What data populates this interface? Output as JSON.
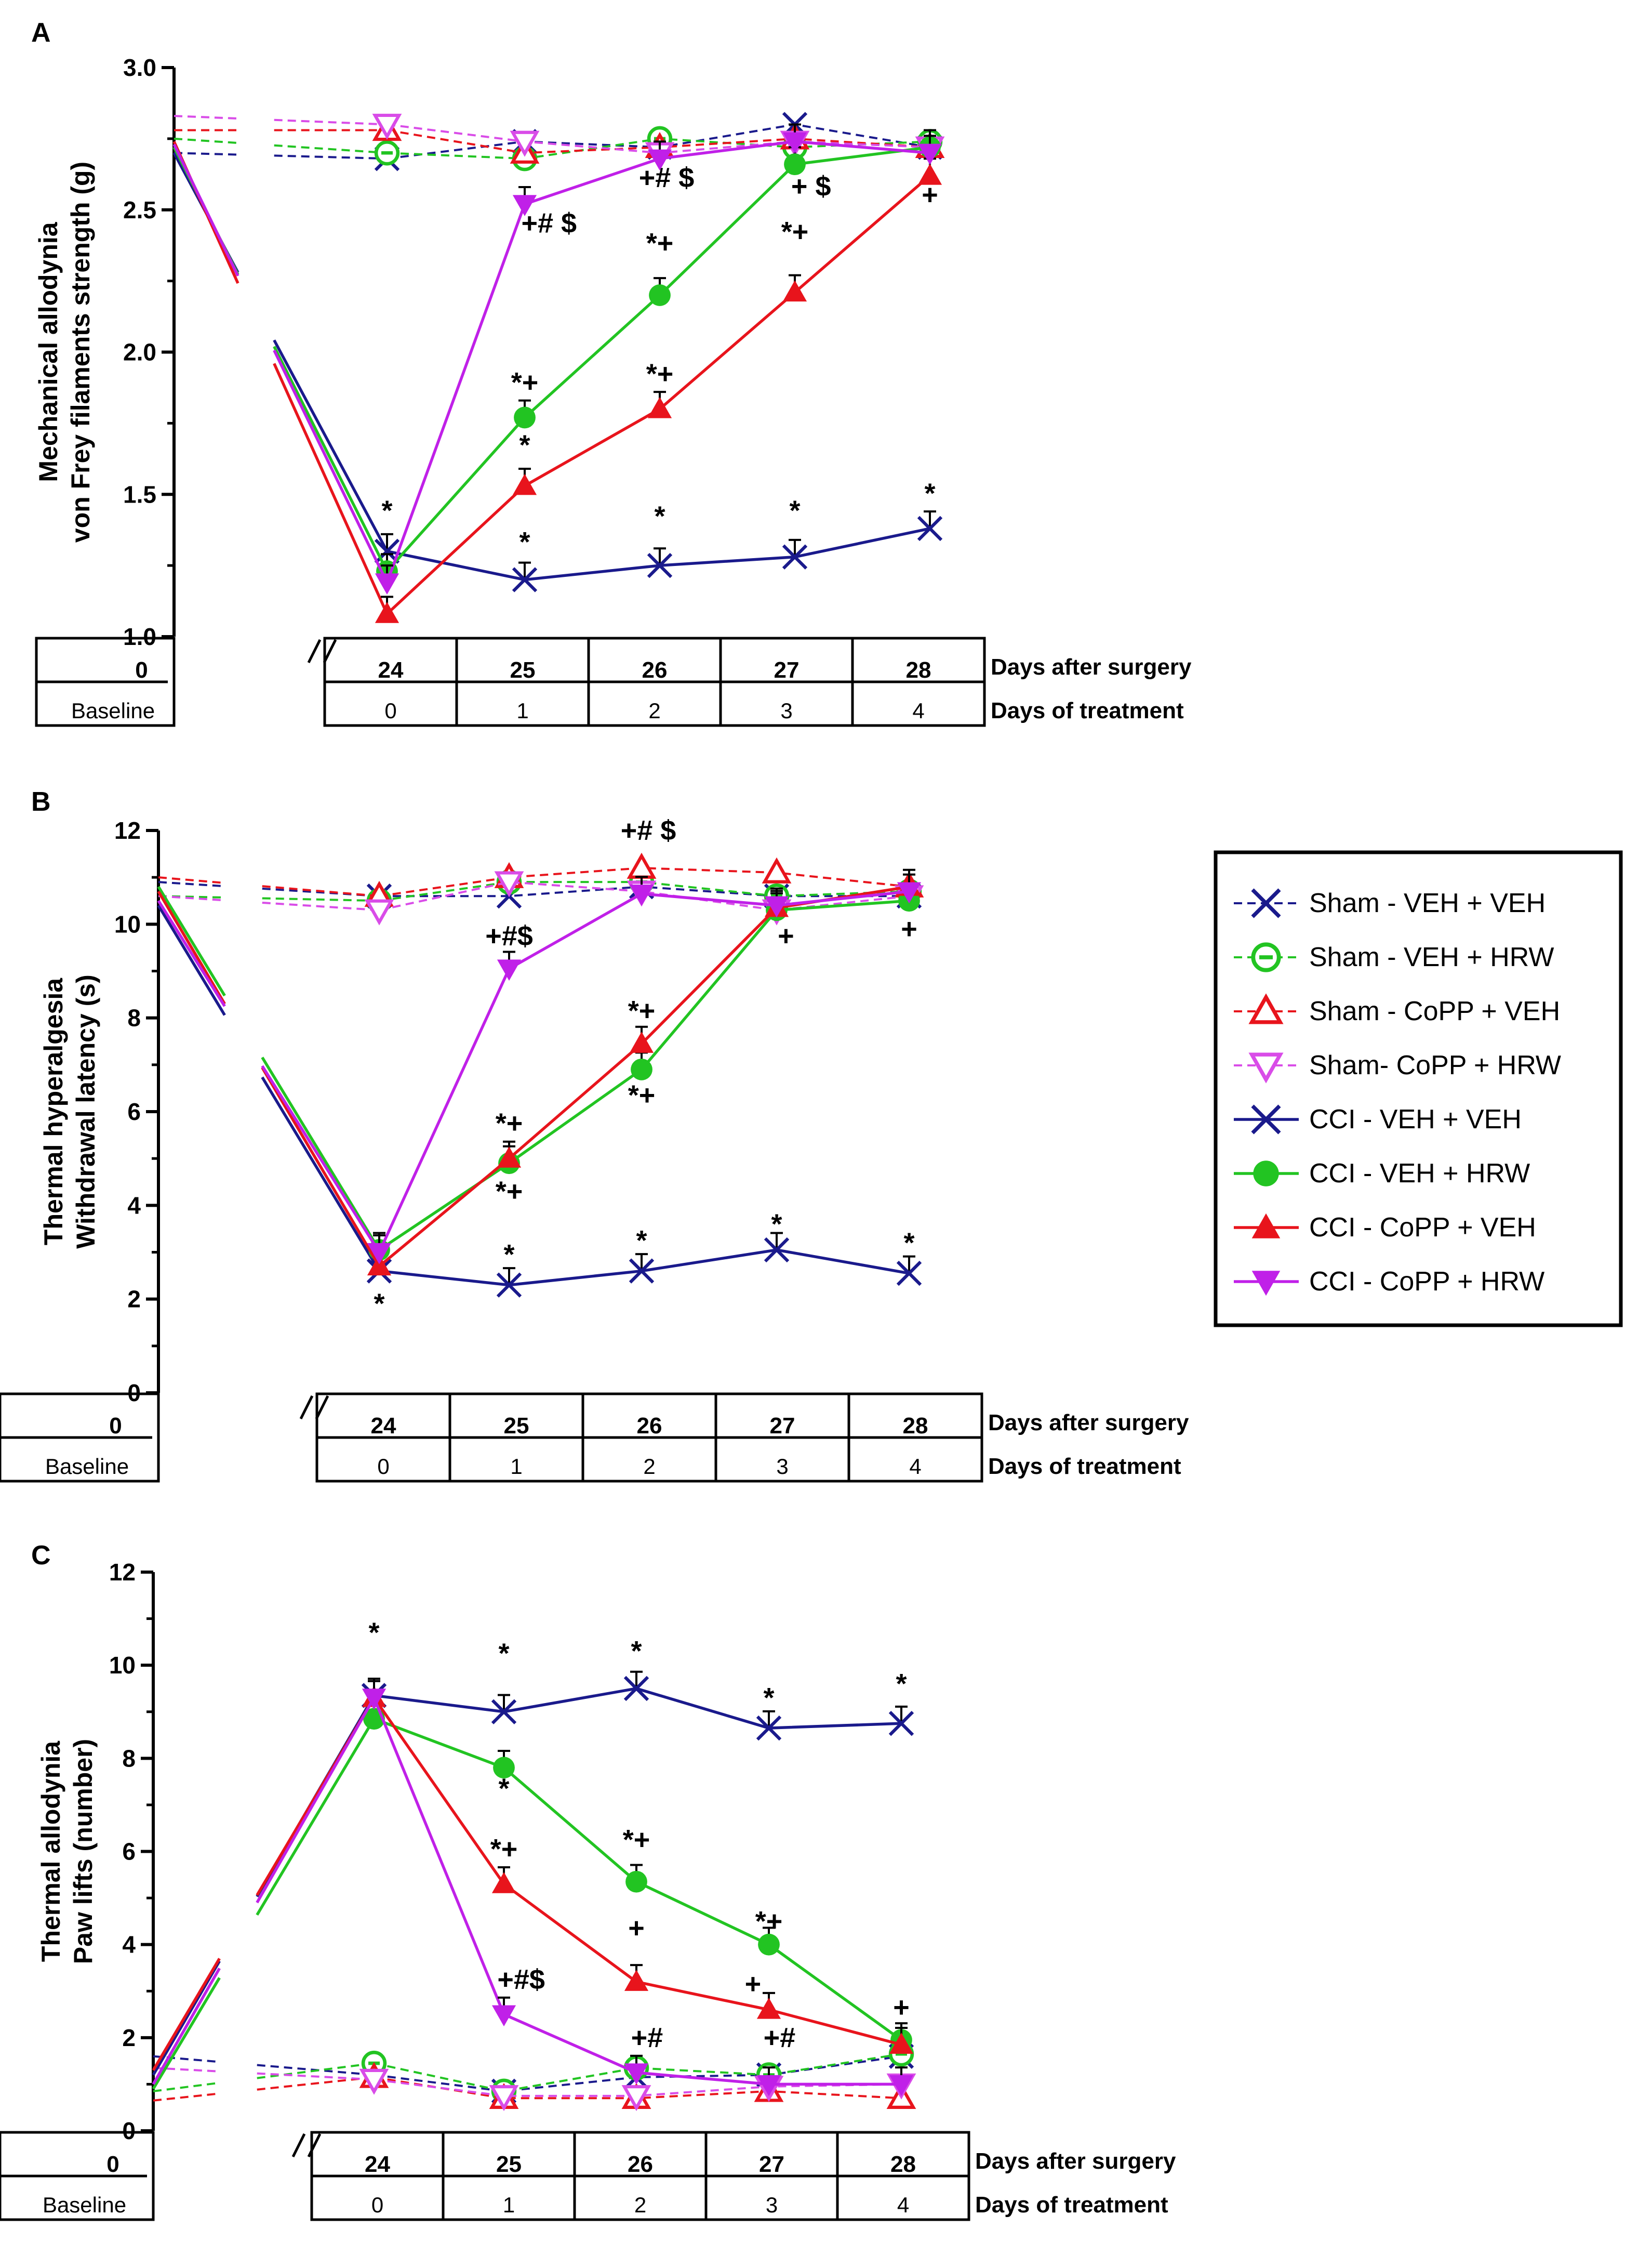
{
  "colors": {
    "sham_veh_veh": "#1a1a8c",
    "sham_veh_hrw": "#22c422",
    "sham_copp_veh": "#e8141c",
    "sham_copp_hrw": "#d94ce8",
    "cci_veh_veh": "#1a1a8c",
    "cci_veh_hrw": "#22c422",
    "cci_copp_veh": "#e8141c",
    "cci_copp_hrw": "#c020e8",
    "black": "#000000"
  },
  "legend": {
    "entries": [
      {
        "label": "Sham - VEH + VEH",
        "series": "sham_veh_veh",
        "marker": "x",
        "dash": true
      },
      {
        "label": "Sham - VEH + HRW",
        "series": "sham_veh_hrw",
        "marker": "circle-open",
        "dash": true
      },
      {
        "label": "Sham - CoPP + VEH",
        "series": "sham_copp_veh",
        "marker": "tri-up-open",
        "dash": true
      },
      {
        "label": "Sham- CoPP + HRW",
        "series": "sham_copp_hrw",
        "marker": "tri-down-open",
        "dash": true
      },
      {
        "label": "CCI - VEH + VEH",
        "series": "cci_veh_veh",
        "marker": "x",
        "dash": false
      },
      {
        "label": "CCI - VEH + HRW",
        "series": "cci_veh_hrw",
        "marker": "circle",
        "dash": false
      },
      {
        "label": "CCI - CoPP + VEH",
        "series": "cci_copp_veh",
        "marker": "tri-up",
        "dash": false
      },
      {
        "label": "CCI - CoPP + HRW",
        "series": "cci_copp_hrw",
        "marker": "tri-down",
        "dash": false
      }
    ]
  },
  "table": {
    "day0": "0",
    "baseline": "Baseline",
    "days_after": [
      "24",
      "25",
      "26",
      "27",
      "28"
    ],
    "days_treat": [
      "0",
      "1",
      "2",
      "3",
      "4"
    ],
    "row1_label": "Days after surgery",
    "row2_label": "Days of treatment"
  },
  "chart_data": [
    {
      "panel": "A",
      "type": "line",
      "ylabel": [
        "Mechanical allodynia",
        "von Frey filaments strength (g)"
      ],
      "ylim": [
        1.0,
        3.0
      ],
      "yticks": [
        "1.0",
        "1.5",
        "2.0",
        "2.5",
        "3.0"
      ],
      "x": [
        "0",
        "24",
        "25",
        "26",
        "27",
        "28"
      ],
      "series": [
        {
          "key": "sham_veh_veh",
          "values": [
            2.7,
            2.68,
            2.74,
            2.72,
            2.8,
            2.72
          ]
        },
        {
          "key": "sham_veh_hrw",
          "values": [
            2.75,
            2.7,
            2.68,
            2.75,
            2.72,
            2.74
          ]
        },
        {
          "key": "sham_copp_veh",
          "values": [
            2.78,
            2.78,
            2.7,
            2.72,
            2.75,
            2.72
          ]
        },
        {
          "key": "sham_copp_hrw",
          "values": [
            2.83,
            2.8,
            2.74,
            2.7,
            2.74,
            2.72
          ]
        },
        {
          "key": "cci_veh_veh",
          "values": [
            2.7,
            1.3,
            1.2,
            1.25,
            1.28,
            1.38
          ]
        },
        {
          "key": "cci_veh_hrw",
          "values": [
            2.72,
            1.23,
            1.77,
            2.2,
            2.66,
            2.72
          ]
        },
        {
          "key": "cci_copp_veh",
          "values": [
            2.74,
            1.08,
            1.53,
            1.8,
            2.21,
            2.62
          ]
        },
        {
          "key": "cci_copp_hrw",
          "values": [
            2.73,
            1.19,
            2.52,
            2.68,
            2.74,
            2.7
          ]
        }
      ],
      "annotations": [
        {
          "text": "*",
          "x": 1,
          "y": 1.41
        },
        {
          "text": "*",
          "x": 2,
          "y": 1.3
        },
        {
          "text": "*",
          "x": 3,
          "y": 1.39
        },
        {
          "text": "*",
          "x": 4,
          "y": 1.41
        },
        {
          "text": "*",
          "x": 5,
          "y": 1.47
        },
        {
          "text": "*",
          "x": 2,
          "y": 1.64
        },
        {
          "text": "*+",
          "x": 2,
          "y": 1.86
        },
        {
          "text": "*+",
          "x": 3,
          "y": 1.89
        },
        {
          "text": "*+",
          "x": 3,
          "y": 2.35
        },
        {
          "text": "*+",
          "x": 4,
          "y": 2.39
        },
        {
          "text": "+# $",
          "x": 2.18,
          "y": 2.42
        },
        {
          "text": "+# $",
          "x": 3.05,
          "y": 2.58
        },
        {
          "text": "+ $",
          "x": 4.12,
          "y": 2.55
        },
        {
          "text": "+",
          "x": 5,
          "y": 2.52
        }
      ]
    },
    {
      "panel": "B",
      "type": "line",
      "ylabel": [
        "Thermal hyperalgesia",
        "Withdrawal latency (s)"
      ],
      "ylim": [
        0,
        12
      ],
      "yticks": [
        "0",
        "2",
        "4",
        "6",
        "8",
        "10",
        "12"
      ],
      "x": [
        "0",
        "24",
        "25",
        "26",
        "27",
        "28"
      ],
      "series": [
        {
          "key": "sham_veh_veh",
          "values": [
            10.9,
            10.6,
            10.6,
            10.8,
            10.6,
            10.6
          ]
        },
        {
          "key": "sham_veh_hrw",
          "values": [
            10.6,
            10.5,
            10.9,
            10.9,
            10.6,
            10.7
          ]
        },
        {
          "key": "sham_copp_veh",
          "values": [
            11.0,
            10.6,
            11.0,
            11.2,
            11.1,
            10.8
          ]
        },
        {
          "key": "sham_copp_hrw",
          "values": [
            10.6,
            10.3,
            10.9,
            10.7,
            10.3,
            10.6
          ]
        },
        {
          "key": "cci_veh_veh",
          "values": [
            10.4,
            2.6,
            2.3,
            2.6,
            3.05,
            2.55
          ]
        },
        {
          "key": "cci_veh_hrw",
          "values": [
            10.8,
            3.05,
            4.9,
            6.9,
            10.3,
            10.5
          ]
        },
        {
          "key": "cci_copp_veh",
          "values": [
            10.7,
            2.7,
            5.0,
            7.45,
            10.35,
            10.8
          ]
        },
        {
          "key": "cci_copp_hrw",
          "values": [
            10.5,
            3.0,
            9.05,
            10.65,
            10.4,
            10.7
          ]
        }
      ],
      "annotations": [
        {
          "text": "*",
          "x": 1,
          "y": 1.7
        },
        {
          "text": "*",
          "x": 2,
          "y": 2.75
        },
        {
          "text": "*",
          "x": 3,
          "y": 3.05
        },
        {
          "text": "*",
          "x": 4,
          "y": 3.4
        },
        {
          "text": "*",
          "x": 5,
          "y": 3.0
        },
        {
          "text": "*+",
          "x": 2,
          "y": 5.55
        },
        {
          "text": "*+",
          "x": 2,
          "y": 4.1
        },
        {
          "text": "*+",
          "x": 3,
          "y": 7.95
        },
        {
          "text": "*+",
          "x": 3,
          "y": 6.15
        },
        {
          "text": "+#$",
          "x": 2,
          "y": 9.55
        },
        {
          "text": "+# $",
          "x": 3.05,
          "y": 11.8
        },
        {
          "text": "+",
          "x": 4.07,
          "y": 9.55
        },
        {
          "text": "+",
          "x": 5,
          "y": 9.7
        }
      ]
    },
    {
      "panel": "C",
      "type": "line",
      "ylabel": [
        "Thermal allodynia",
        "Paw lifts (number)"
      ],
      "ylim": [
        0,
        12
      ],
      "yticks": [
        "0",
        "2",
        "4",
        "6",
        "8",
        "10",
        "12"
      ],
      "x": [
        "0",
        "24",
        "25",
        "26",
        "27",
        "28"
      ],
      "series": [
        {
          "key": "sham_veh_veh",
          "values": [
            1.6,
            1.2,
            0.85,
            1.15,
            1.2,
            1.6
          ]
        },
        {
          "key": "sham_veh_hrw",
          "values": [
            0.85,
            1.45,
            0.85,
            1.35,
            1.2,
            1.65
          ]
        },
        {
          "key": "sham_copp_veh",
          "values": [
            0.65,
            1.15,
            0.7,
            0.7,
            0.85,
            0.7
          ]
        },
        {
          "key": "sham_copp_hrw",
          "values": [
            1.35,
            1.1,
            0.75,
            0.75,
            0.95,
            1.0
          ]
        },
        {
          "key": "cci_veh_veh",
          "values": [
            1.2,
            9.35,
            9.0,
            9.5,
            8.65,
            8.75
          ]
        },
        {
          "key": "cci_veh_hrw",
          "values": [
            0.9,
            8.85,
            7.8,
            5.35,
            4.0,
            1.95
          ]
        },
        {
          "key": "cci_copp_veh",
          "values": [
            1.3,
            9.3,
            5.3,
            3.2,
            2.6,
            1.85
          ]
        },
        {
          "key": "cci_copp_hrw",
          "values": [
            1.0,
            9.3,
            2.5,
            1.25,
            1.0,
            1.0
          ]
        }
      ],
      "annotations": [
        {
          "text": "*",
          "x": 1,
          "y": 10.5
        },
        {
          "text": "*",
          "x": 2,
          "y": 10.05
        },
        {
          "text": "*",
          "x": 3,
          "y": 10.1
        },
        {
          "text": "*",
          "x": 4,
          "y": 9.1
        },
        {
          "text": "*",
          "x": 5,
          "y": 9.4
        },
        {
          "text": "*",
          "x": 2,
          "y": 7.15
        },
        {
          "text": "*+",
          "x": 2,
          "y": 5.85
        },
        {
          "text": "*+",
          "x": 3,
          "y": 6.05
        },
        {
          "text": "*+",
          "x": 4,
          "y": 4.3
        },
        {
          "text": "+",
          "x": 3,
          "y": 4.15
        },
        {
          "text": "+",
          "x": 3.88,
          "y": 2.95
        },
        {
          "text": "+",
          "x": 5,
          "y": 2.45
        },
        {
          "text": "+#$",
          "x": 2.13,
          "y": 3.05
        },
        {
          "text": "+#",
          "x": 3.08,
          "y": 1.8
        },
        {
          "text": "+#",
          "x": 4.08,
          "y": 1.8
        }
      ]
    }
  ]
}
